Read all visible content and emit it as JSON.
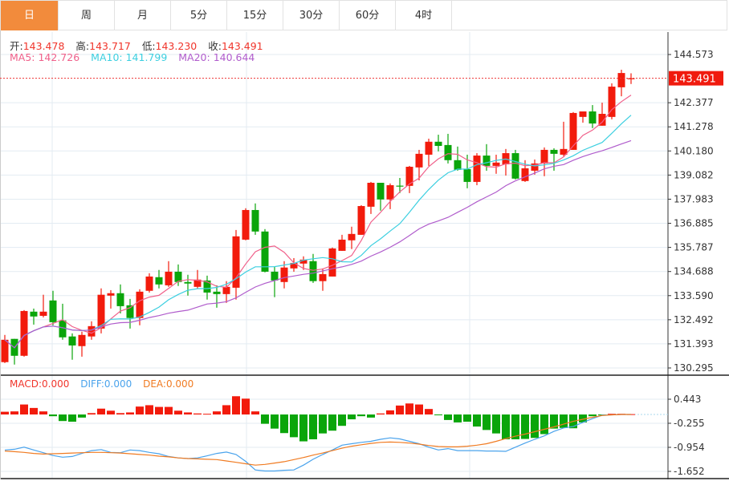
{
  "tabs": [
    "日",
    "周",
    "月",
    "5分",
    "15分",
    "30分",
    "60分",
    "4时"
  ],
  "active_tab": 0,
  "ohlc": {
    "open_label": "开:",
    "open": "143.478",
    "high_label": "高:",
    "high": "143.717",
    "low_label": "低:",
    "low": "143.230",
    "close_label": "收:",
    "close": "143.491"
  },
  "ma": {
    "ma5_label": "MA5: 142.726",
    "ma10_label": "MA10: 141.799",
    "ma20_label": "MA20: 140.644"
  },
  "macd": {
    "macd_label": "MACD:0.000",
    "diff_label": "DIFF:0.000",
    "dea_label": "DEA:0.000"
  },
  "colors": {
    "up": "#f21b0c",
    "down": "#0aa50a",
    "ma5": "#f0608a",
    "ma10": "#3ccfe0",
    "ma20": "#b05ccc",
    "diff": "#4aa3ec",
    "dea": "#f07b22",
    "accent": "#f28b3c"
  },
  "current_price": "143.491",
  "chart_data": {
    "type": "candlestick",
    "price_ticks": [
      "144.573",
      "142.377",
      "141.278",
      "140.180",
      "139.082",
      "137.983",
      "136.885",
      "135.787",
      "134.688",
      "133.590",
      "132.492",
      "131.393",
      "130.295"
    ],
    "price_range": [
      130.295,
      144.573
    ],
    "macd_ticks": [
      "0.443",
      "-0.255",
      "-0.954",
      "-1.652"
    ],
    "macd_range": [
      -1.652,
      0.443
    ],
    "candles": [
      [
        130.56,
        131.8,
        130.52,
        131.58
      ],
      [
        131.62,
        131.62,
        130.45,
        130.85
      ],
      [
        130.85,
        132.93,
        130.81,
        132.89
      ],
      [
        132.86,
        133.0,
        132.27,
        132.64
      ],
      [
        132.67,
        133.63,
        132.6,
        132.86
      ],
      [
        133.37,
        133.81,
        132.24,
        132.38
      ],
      [
        132.46,
        133.22,
        131.58,
        131.69
      ],
      [
        131.73,
        131.87,
        130.67,
        131.32
      ],
      [
        131.29,
        131.95,
        130.81,
        131.8
      ],
      [
        131.73,
        132.42,
        131.58,
        132.2
      ],
      [
        132.09,
        133.92,
        131.87,
        133.63
      ],
      [
        133.59,
        133.84,
        133.0,
        133.7
      ],
      [
        133.7,
        134.1,
        132.78,
        133.11
      ],
      [
        133.15,
        133.44,
        132.09,
        132.57
      ],
      [
        132.57,
        133.88,
        132.24,
        133.77
      ],
      [
        133.81,
        134.61,
        133.73,
        134.46
      ],
      [
        134.43,
        134.76,
        133.92,
        134.1
      ],
      [
        134.06,
        135.16,
        133.99,
        134.68
      ],
      [
        134.68,
        135.01,
        134.03,
        134.21
      ],
      [
        134.21,
        134.54,
        133.59,
        134.14
      ],
      [
        133.99,
        134.76,
        133.92,
        134.32
      ],
      [
        134.28,
        134.5,
        133.41,
        133.73
      ],
      [
        133.77,
        134.06,
        133.04,
        133.66
      ],
      [
        133.66,
        134.25,
        133.26,
        133.99
      ],
      [
        133.95,
        136.58,
        133.41,
        136.29
      ],
      [
        136.14,
        137.57,
        136.11,
        137.49
      ],
      [
        137.49,
        137.79,
        136.36,
        136.51
      ],
      [
        136.51,
        136.62,
        134.65,
        134.68
      ],
      [
        134.68,
        134.9,
        133.52,
        134.28
      ],
      [
        134.21,
        135.16,
        133.92,
        134.87
      ],
      [
        134.83,
        135.3,
        134.68,
        135.08
      ],
      [
        135.05,
        135.38,
        134.76,
        135.23
      ],
      [
        135.16,
        135.49,
        134.17,
        134.25
      ],
      [
        134.25,
        134.83,
        133.81,
        134.57
      ],
      [
        134.46,
        135.78,
        134.46,
        135.74
      ],
      [
        135.63,
        136.36,
        135.63,
        136.14
      ],
      [
        136.11,
        136.73,
        135.71,
        136.4
      ],
      [
        136.36,
        137.71,
        136.36,
        137.67
      ],
      [
        137.64,
        138.77,
        137.31,
        138.73
      ],
      [
        138.73,
        138.73,
        137.46,
        137.97
      ],
      [
        137.97,
        138.7,
        137.53,
        138.62
      ],
      [
        138.6,
        138.95,
        138.26,
        138.59
      ],
      [
        138.59,
        139.5,
        138.26,
        139.46
      ],
      [
        139.43,
        140.23,
        138.84,
        140.05
      ],
      [
        140.01,
        140.74,
        139.5,
        140.6
      ],
      [
        140.6,
        140.92,
        140.16,
        140.41
      ],
      [
        140.45,
        140.96,
        139.61,
        139.76
      ],
      [
        139.76,
        140.38,
        139.28,
        139.32
      ],
      [
        139.35,
        140.01,
        138.48,
        138.77
      ],
      [
        138.77,
        140.08,
        138.62,
        139.97
      ],
      [
        139.97,
        140.49,
        139.28,
        139.5
      ],
      [
        139.5,
        140.01,
        139.14,
        139.65
      ],
      [
        139.57,
        140.27,
        139.06,
        140.08
      ],
      [
        140.08,
        140.23,
        138.88,
        138.92
      ],
      [
        138.81,
        139.76,
        138.77,
        139.39
      ],
      [
        139.28,
        139.79,
        139.1,
        139.61
      ],
      [
        139.61,
        140.34,
        139.03,
        140.23
      ],
      [
        140.23,
        140.3,
        139.28,
        140.05
      ],
      [
        140.01,
        141.51,
        139.94,
        140.27
      ],
      [
        140.23,
        141.95,
        140.23,
        141.91
      ],
      [
        141.73,
        141.98,
        141.47,
        141.98
      ],
      [
        141.98,
        142.27,
        141.22,
        141.43
      ],
      [
        141.33,
        142.38,
        141.33,
        141.87
      ],
      [
        141.73,
        143.26,
        141.62,
        143.11
      ],
      [
        143.08,
        143.88,
        142.67,
        143.73
      ],
      [
        143.478,
        143.717,
        143.23,
        143.491
      ]
    ],
    "macd_hist": [
      0.08,
      0.09,
      0.29,
      0.19,
      0.09,
      -0.05,
      -0.19,
      -0.21,
      -0.09,
      0.04,
      0.17,
      0.11,
      0.04,
      0.06,
      0.23,
      0.27,
      0.22,
      0.22,
      0.11,
      0.06,
      0.03,
      0.02,
      0.09,
      0.27,
      0.53,
      0.46,
      0.09,
      -0.27,
      -0.41,
      -0.54,
      -0.66,
      -0.78,
      -0.72,
      -0.55,
      -0.47,
      -0.33,
      -0.14,
      -0.05,
      -0.09,
      0.03,
      0.12,
      0.26,
      0.32,
      0.29,
      0.16,
      -0.02,
      -0.16,
      -0.23,
      -0.21,
      -0.35,
      -0.45,
      -0.55,
      -0.72,
      -0.72,
      -0.71,
      -0.68,
      -0.57,
      -0.41,
      -0.39,
      -0.4,
      -0.23,
      -0.05,
      -0.02,
      0.02,
      0.02,
      0.01
    ],
    "diff": [
      -1.03,
      -1.01,
      -0.95,
      -1.03,
      -1.11,
      -1.19,
      -1.24,
      -1.22,
      -1.13,
      -1.05,
      -1.02,
      -1.1,
      -1.11,
      -1.03,
      -1.05,
      -1.1,
      -1.14,
      -1.22,
      -1.26,
      -1.28,
      -1.26,
      -1.2,
      -1.13,
      -1.09,
      -1.16,
      -1.36,
      -1.61,
      -1.64,
      -1.64,
      -1.62,
      -1.61,
      -1.47,
      -1.3,
      -1.16,
      -1.03,
      -0.89,
      -0.85,
      -0.81,
      -0.78,
      -0.72,
      -0.68,
      -0.71,
      -0.78,
      -0.85,
      -0.95,
      -1.03,
      -0.99,
      -1.05,
      -1.05,
      -1.05,
      -1.06,
      -1.06,
      -1.07,
      -0.95,
      -0.83,
      -0.72,
      -0.62,
      -0.49,
      -0.39,
      -0.35,
      -0.23,
      -0.12,
      -0.02,
      -0.01,
      0,
      0
    ],
    "dea": [
      -1.06,
      -1.08,
      -1.1,
      -1.13,
      -1.15,
      -1.14,
      -1.13,
      -1.12,
      -1.11,
      -1.1,
      -1.1,
      -1.11,
      -1.12,
      -1.14,
      -1.16,
      -1.18,
      -1.21,
      -1.23,
      -1.26,
      -1.28,
      -1.29,
      -1.3,
      -1.31,
      -1.35,
      -1.39,
      -1.43,
      -1.47,
      -1.45,
      -1.41,
      -1.37,
      -1.31,
      -1.25,
      -1.18,
      -1.12,
      -1.05,
      -0.98,
      -0.92,
      -0.88,
      -0.84,
      -0.81,
      -0.8,
      -0.81,
      -0.83,
      -0.86,
      -0.9,
      -0.93,
      -0.94,
      -0.94,
      -0.92,
      -0.89,
      -0.85,
      -0.78,
      -0.7,
      -0.63,
      -0.57,
      -0.5,
      -0.43,
      -0.36,
      -0.28,
      -0.2,
      -0.14,
      -0.08,
      -0.03,
      -0.01,
      0,
      0
    ]
  }
}
